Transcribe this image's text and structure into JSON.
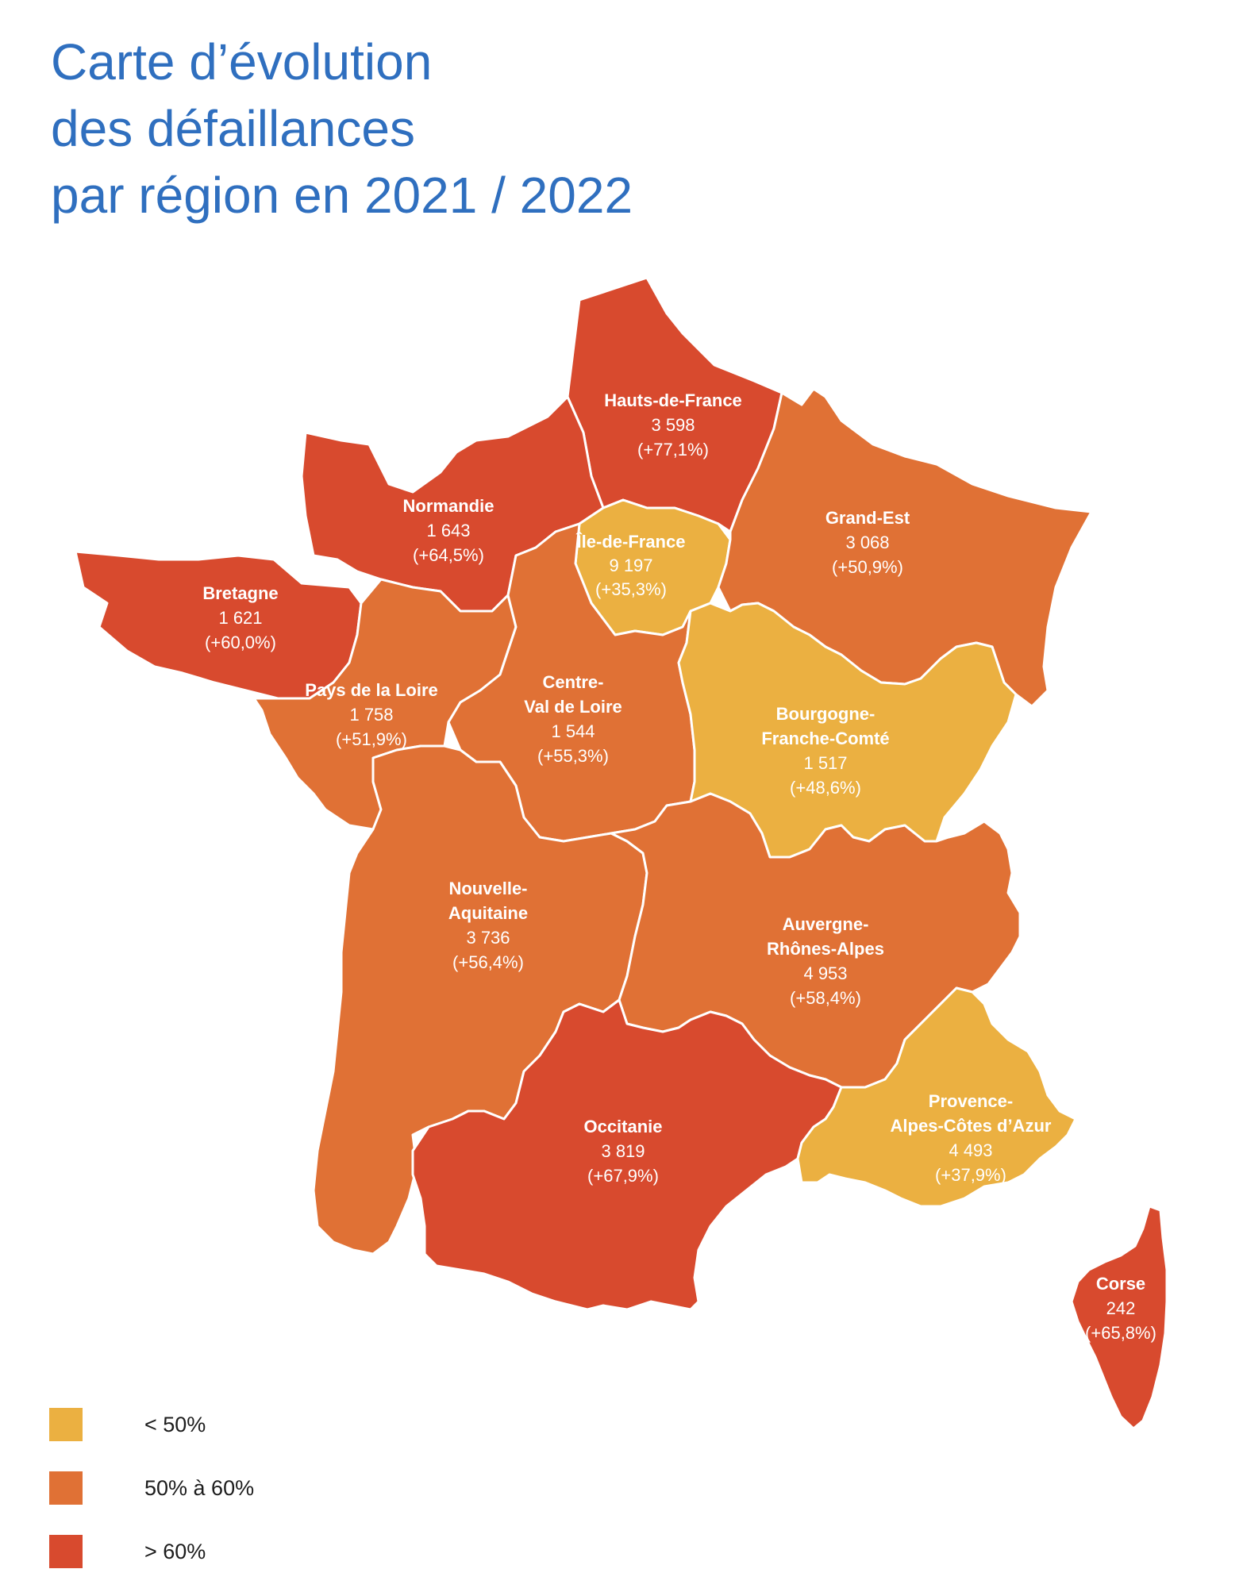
{
  "title": {
    "line1": "Carte d’évolution",
    "line2": "des défaillances",
    "line3": "par région en 2021 / 2022"
  },
  "colors": {
    "low": "#ebb041",
    "mid": "#e07135",
    "high": "#d84a2e",
    "title": "#2f6fbf"
  },
  "regions": {
    "hauts_de_france": {
      "name": "Hauts-de-France",
      "count": "3 598",
      "change": "(+77,1%)",
      "class": "high"
    },
    "normandie": {
      "name": "Normandie",
      "count": "1 643",
      "change": "(+64,5%)",
      "class": "high"
    },
    "ile_de_france": {
      "name": "Île-de-France",
      "count": "9 197",
      "change": "(+35,3%)",
      "class": "low"
    },
    "grand_est": {
      "name": "Grand-Est",
      "count": "3 068",
      "change": "(+50,9%)",
      "class": "mid"
    },
    "bretagne": {
      "name": "Bretagne",
      "count": "1 621",
      "change": "(+60,0%)",
      "class": "high"
    },
    "pays_de_la_loire": {
      "name": "Pays de la Loire",
      "count": "1 758",
      "change": "(+51,9%)",
      "class": "mid"
    },
    "centre_val_de_loire": {
      "name_line1": "Centre-",
      "name_line2": "Val de Loire",
      "count": "1 544",
      "change": "(+55,3%)",
      "class": "mid"
    },
    "bourgogne_franche_comte": {
      "name_line1": "Bourgogne-",
      "name_line2": "Franche-Comté",
      "count": "1 517",
      "change": "(+48,6%)",
      "class": "low"
    },
    "nouvelle_aquitaine": {
      "name_line1": "Nouvelle-",
      "name_line2": "Aquitaine",
      "count": "3 736",
      "change": "(+56,4%)",
      "class": "mid"
    },
    "auvergne_rhone_alpes": {
      "name_line1": "Auvergne-",
      "name_line2": "Rhônes-Alpes",
      "count": "4 953",
      "change": "(+58,4%)",
      "class": "mid"
    },
    "occitanie": {
      "name": "Occitanie",
      "count": "3 819",
      "change": "(+67,9%)",
      "class": "high"
    },
    "paca": {
      "name_line1": "Provence-",
      "name_line2": "Alpes-Côtes d’Azur",
      "count": "4 493",
      "change": "(+37,9%)",
      "class": "low"
    },
    "corse": {
      "name": "Corse",
      "count": "242",
      "change": "(+65,8%)",
      "class": "high"
    }
  },
  "legend": [
    {
      "label": "< 50%",
      "color": "#ebb041"
    },
    {
      "label": "50% à 60%",
      "color": "#e07135"
    },
    {
      "label": "> 60%",
      "color": "#d84a2e"
    }
  ]
}
